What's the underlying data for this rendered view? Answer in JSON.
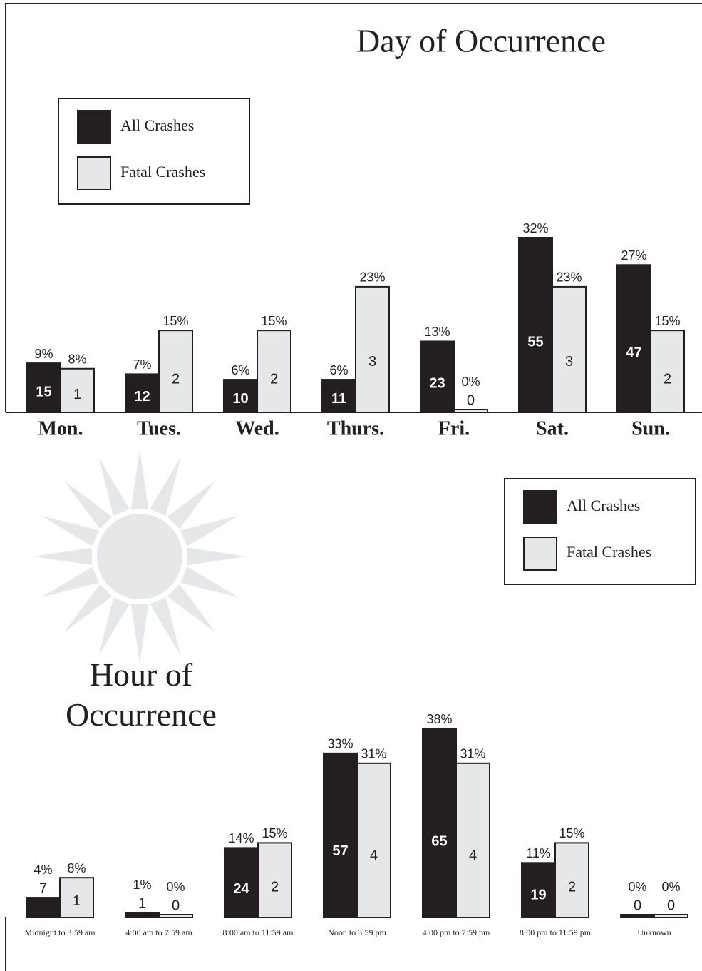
{
  "chart_data": [
    {
      "type": "bar",
      "title": "Day of Occurrence",
      "categories": [
        "Mon.",
        "Tues.",
        "Wed.",
        "Thurs.",
        "Fri.",
        "Sat.",
        "Sun."
      ],
      "legend": "upper-left",
      "series": [
        {
          "name": "All Crashes",
          "color": "#231f20",
          "values": [
            9,
            7,
            6,
            6,
            13,
            32,
            27
          ],
          "value_labels": [
            "9%",
            "7%",
            "6%",
            "6%",
            "13%",
            "32%",
            "27%"
          ],
          "counts": [
            15,
            12,
            10,
            11,
            23,
            55,
            47
          ]
        },
        {
          "name": "Fatal Crashes",
          "color": "#e6e7e8",
          "values": [
            8,
            15,
            15,
            23,
            0,
            23,
            15
          ],
          "value_labels": [
            "8%",
            "15%",
            "15%",
            "23%",
            "0%",
            "23%",
            "15%"
          ],
          "counts": [
            1,
            2,
            2,
            3,
            0,
            3,
            2
          ]
        }
      ]
    },
    {
      "type": "bar",
      "title": "Hour of Occurrence",
      "categories": [
        "Midnight to 3:59 am",
        "4:00 am to 7:59 am",
        "8:00 am to 11:59 am",
        "Noon to 3:59 pm",
        "4:00 pm to 7:59 pm",
        "8:00 pm to 11:59 pm",
        "Unknown"
      ],
      "legend": "upper-right",
      "series": [
        {
          "name": "All Crashes",
          "color": "#231f20",
          "values": [
            4,
            1,
            14,
            33,
            38,
            11,
            0
          ],
          "value_labels": [
            "4%",
            "1%",
            "14%",
            "33%",
            "38%",
            "11%",
            "0%"
          ],
          "counts": [
            7,
            1,
            24,
            57,
            65,
            19,
            0
          ]
        },
        {
          "name": "Fatal Crashes",
          "color": "#e6e7e8",
          "values": [
            8,
            0,
            15,
            31,
            31,
            15,
            0
          ],
          "value_labels": [
            "8%",
            "0%",
            "15%",
            "31%",
            "31%",
            "15%",
            "0%"
          ],
          "counts": [
            1,
            0,
            2,
            4,
            4,
            2,
            0
          ]
        }
      ]
    }
  ]
}
